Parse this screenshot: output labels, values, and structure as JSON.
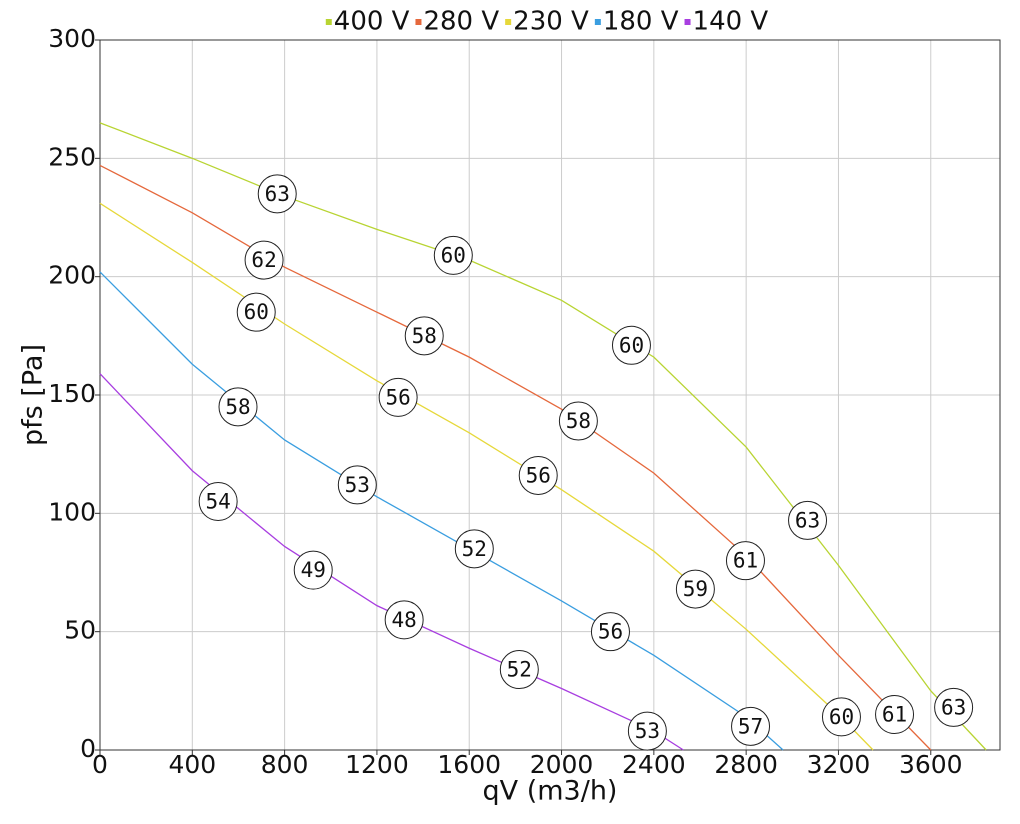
{
  "chart_data": {
    "type": "line",
    "xlabel": "qV (m3/h)",
    "ylabel": "pfs [Pa]",
    "xlim": [
      0,
      3900
    ],
    "ylim": [
      0,
      300
    ],
    "xticks": [
      0,
      400,
      800,
      1200,
      1600,
      2000,
      2400,
      2800,
      3200,
      3600
    ],
    "yticks": [
      0,
      50,
      100,
      150,
      200,
      250,
      300
    ],
    "grid": true,
    "legend": "top",
    "series": [
      {
        "name": "400 V",
        "color": "#b8d432",
        "x": [
          0,
          400,
          800,
          1200,
          1600,
          2000,
          2400,
          2800,
          3200,
          3600,
          3840
        ],
        "values": [
          265,
          250,
          234,
          220,
          207,
          190,
          166,
          128,
          78,
          25,
          0
        ],
        "label_x": [
          768,
          1531,
          2303,
          3066,
          3699
        ],
        "label_y": [
          235,
          209,
          171,
          97,
          18
        ],
        "label_values": [
          63,
          60,
          60,
          63,
          63
        ]
      },
      {
        "name": "280 V",
        "color": "#e5683c",
        "x": [
          0,
          400,
          800,
          1200,
          1600,
          2000,
          2400,
          2800,
          3200,
          3600
        ],
        "values": [
          247,
          227,
          204,
          185,
          166,
          144,
          117,
          82,
          40,
          0
        ],
        "label_x": [
          711,
          1405,
          2073,
          2797,
          3443
        ],
        "label_y": [
          207,
          175,
          139,
          80,
          15
        ],
        "label_values": [
          62,
          58,
          58,
          61,
          61
        ]
      },
      {
        "name": "230 V",
        "color": "#e6d83a",
        "x": [
          0,
          400,
          800,
          1200,
          1600,
          2000,
          2400,
          2800,
          3200,
          3350
        ],
        "values": [
          231,
          206,
          180,
          156,
          134,
          110,
          84,
          51,
          15,
          0
        ],
        "label_x": [
          677,
          1292,
          1899,
          2580,
          3213
        ],
        "label_y": [
          185,
          149,
          116,
          68,
          14
        ],
        "label_values": [
          60,
          56,
          56,
          59,
          60
        ]
      },
      {
        "name": "180 V",
        "color": "#3a9ee0",
        "x": [
          0,
          400,
          800,
          1200,
          1600,
          2000,
          2400,
          2800,
          2960
        ],
        "values": [
          202,
          163,
          131,
          107,
          85,
          63,
          40,
          14,
          0
        ],
        "label_x": [
          598,
          1115,
          1622,
          2212,
          2819
        ],
        "label_y": [
          145,
          112,
          85,
          50,
          10
        ],
        "label_values": [
          58,
          53,
          52,
          56,
          57
        ]
      },
      {
        "name": "140 V",
        "color": "#a83ee0",
        "x": [
          0,
          400,
          800,
          1200,
          1600,
          2000,
          2400,
          2528
        ],
        "values": [
          159,
          118,
          86,
          61,
          43,
          26,
          8,
          0
        ],
        "label_x": [
          512,
          924,
          1318,
          1817,
          2372
        ],
        "label_y": [
          105,
          76,
          55,
          34,
          8
        ],
        "label_values": [
          54,
          49,
          48,
          52,
          53
        ]
      }
    ]
  }
}
